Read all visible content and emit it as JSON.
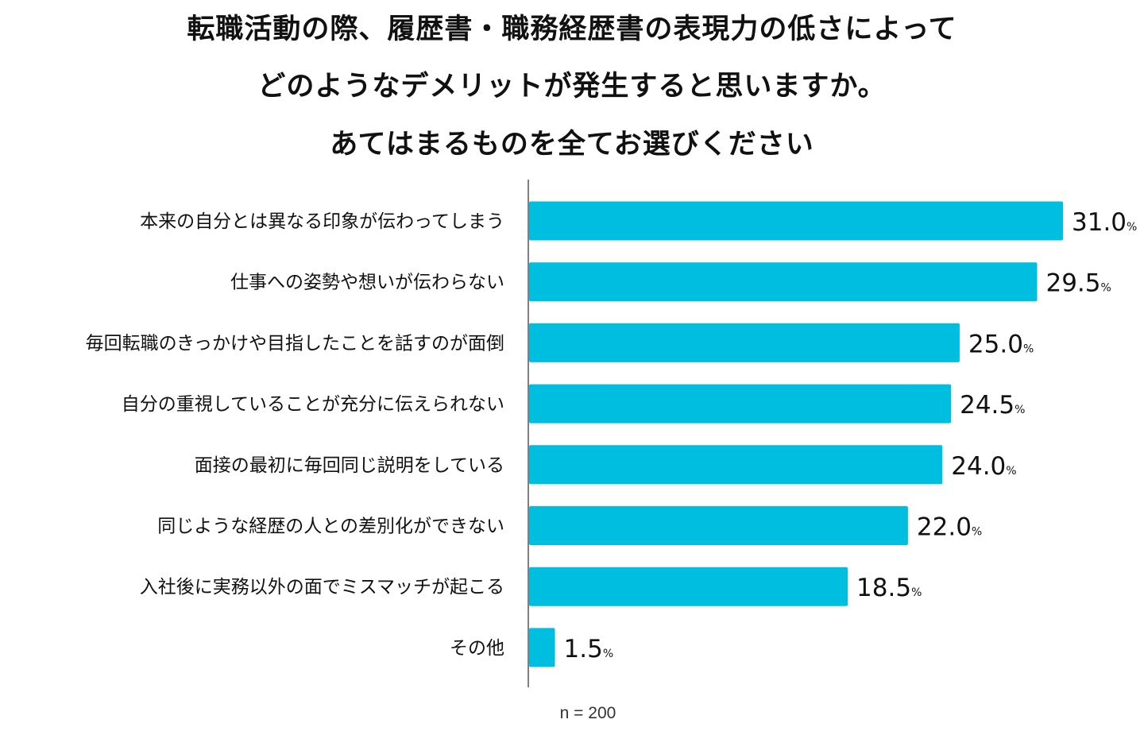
{
  "chart_data": {
    "type": "bar",
    "orientation": "horizontal",
    "title": [
      "転職活動の際、履歴書・職務経歴書の表現力の低さによって",
      "どのようなデメリットが発生すると思いますか。",
      "あてはまるものを全てお選びください"
    ],
    "categories": [
      "本来の自分とは異なる印象が伝わってしまう",
      "仕事への姿勢や想いが伝わらない",
      "毎回転職のきっかけや目指したことを話すのが面倒",
      "自分の重視していることが充分に伝えられない",
      "面接の最初に毎回同じ説明をしている",
      "同じような経歴の人との差別化ができない",
      "入社後に実務以外の面でミスマッチが起こる",
      "その他"
    ],
    "values": [
      31.0,
      29.5,
      25.0,
      24.5,
      24.0,
      22.0,
      18.5,
      1.5
    ],
    "value_labels": [
      "31.0",
      "29.5",
      "25.0",
      "24.5",
      "24.0",
      "22.0",
      "18.5",
      "1.5"
    ],
    "unit": "%",
    "xlim": [
      0,
      31
    ],
    "grid": false,
    "color": "#00bedf",
    "note": "n = 200"
  }
}
